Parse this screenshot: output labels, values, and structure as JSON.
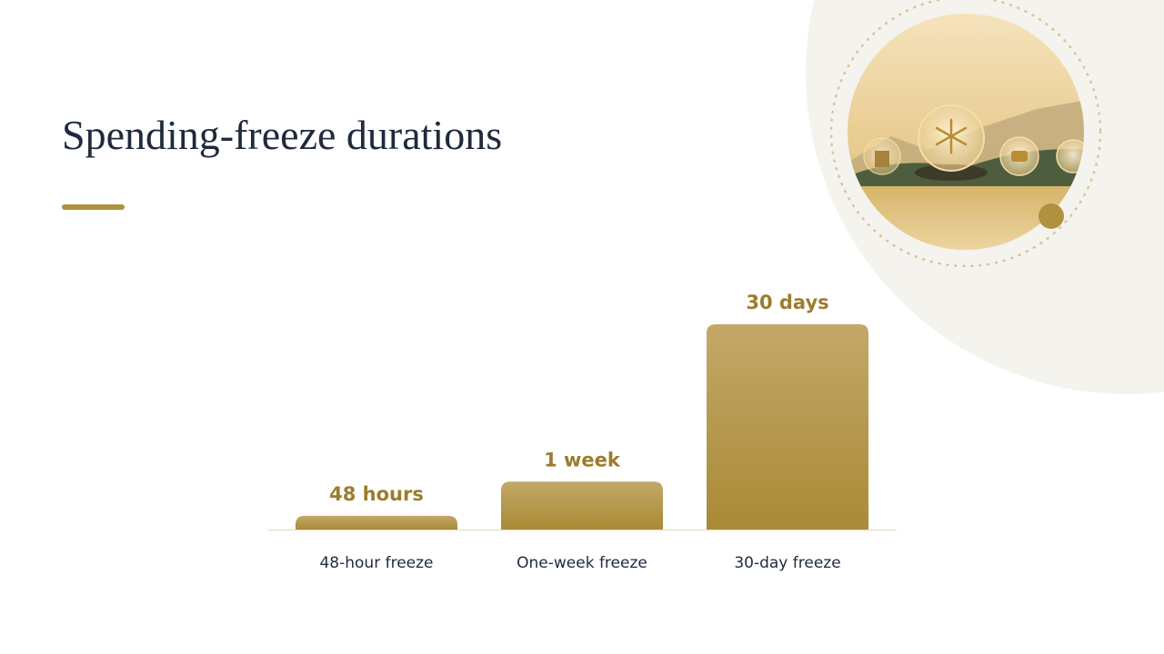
{
  "chart_data": {
    "type": "bar",
    "title": "Spending-freeze durations",
    "categories": [
      "48-hour freeze",
      "One-week freeze",
      "30-day freeze"
    ],
    "values": [
      2,
      7,
      30
    ],
    "value_labels": [
      "48 hours",
      "1 week",
      "30 days"
    ],
    "color": "#b0913f"
  }
}
